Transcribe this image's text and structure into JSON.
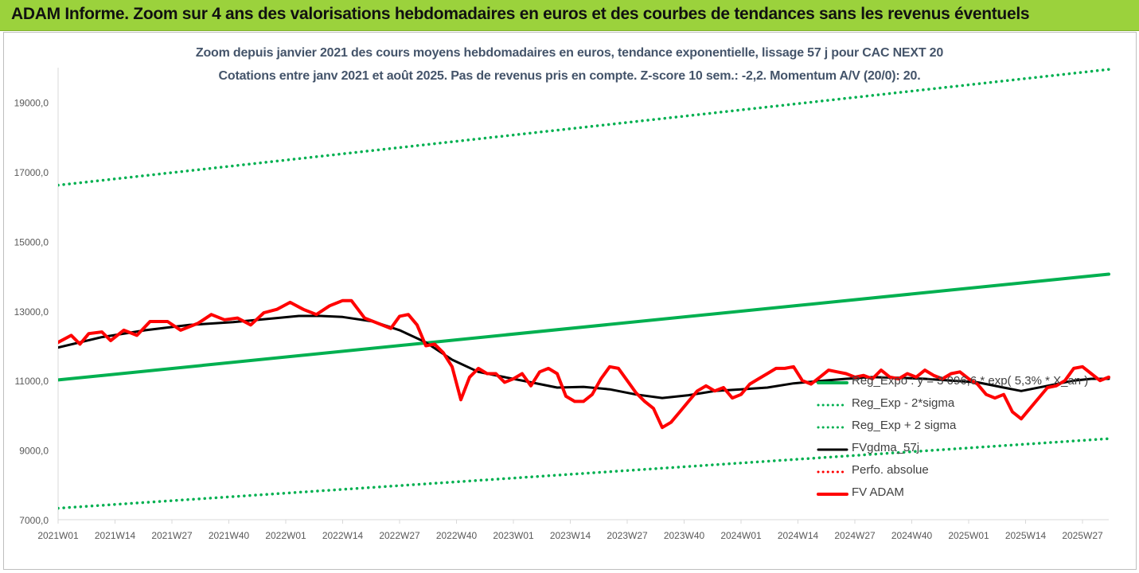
{
  "banner": {
    "title": "ADAM Informe. Zoom sur 4 ans des valorisations hebdomadaires en euros et des courbes de tendances sans les revenus éventuels"
  },
  "chart_data": {
    "type": "line",
    "title": "Zoom depuis janvier 2021 des cours moyens hebdomadaires en euros, tendance exponentielle, lissage 57 j pour CAC NEXT 20",
    "subtitle": "Cotations entre janv 2021 et août 2025.  Pas de revenus pris en compte. Z-score 10 sem.: -2,2. Momentum A/V (20/0): 20.",
    "xlabel": "",
    "ylabel": "",
    "ylim": [
      7000,
      20000
    ],
    "y_ticks": [
      7000,
      9000,
      11000,
      13000,
      15000,
      17000,
      19000
    ],
    "y_tick_labels": [
      "7000,0",
      "9000,0",
      "11000,0",
      "13000,0",
      "15000,0",
      "17000,0",
      "19000,0"
    ],
    "x_categories": [
      "2021W01",
      "2021W14",
      "2021W27",
      "2021W40",
      "2022W01",
      "2022W14",
      "2022W27",
      "2022W40",
      "2023W01",
      "2023W14",
      "2023W27",
      "2023W40",
      "2024W01",
      "2024W14",
      "2024W27",
      "2024W40",
      "2025W01",
      "2025W14",
      "2025W27"
    ],
    "x_count": 241,
    "grid": false,
    "legend_position": "bottom-right",
    "series": [
      {
        "name": "Reg_Expo : y = 3 096,6 * exp( 5,3% *  X_an )",
        "color": "#00b050",
        "style": "solid",
        "points": [
          [
            0,
            11020
          ],
          [
            240,
            14060
          ]
        ]
      },
      {
        "name": "Reg_Exp - 2*sigma",
        "color": "#00b050",
        "style": "dotted",
        "points": [
          [
            0,
            7330
          ],
          [
            240,
            9330
          ]
        ]
      },
      {
        "name": "Reg_Exp + 2 sigma",
        "color": "#00b050",
        "style": "dotted",
        "points": [
          [
            0,
            16620
          ],
          [
            240,
            19950
          ]
        ]
      },
      {
        "name": "FVgdma_57j",
        "color": "#000000",
        "style": "solid",
        "points": [
          [
            0,
            11950
          ],
          [
            10,
            12250
          ],
          [
            20,
            12450
          ],
          [
            30,
            12600
          ],
          [
            40,
            12680
          ],
          [
            50,
            12800
          ],
          [
            55,
            12860
          ],
          [
            60,
            12860
          ],
          [
            65,
            12830
          ],
          [
            72,
            12700
          ],
          [
            78,
            12450
          ],
          [
            84,
            12100
          ],
          [
            90,
            11600
          ],
          [
            96,
            11250
          ],
          [
            102,
            11100
          ],
          [
            108,
            10950
          ],
          [
            114,
            10800
          ],
          [
            120,
            10820
          ],
          [
            126,
            10750
          ],
          [
            132,
            10600
          ],
          [
            138,
            10500
          ],
          [
            144,
            10580
          ],
          [
            150,
            10700
          ],
          [
            156,
            10750
          ],
          [
            162,
            10800
          ],
          [
            168,
            10920
          ],
          [
            175,
            11000
          ],
          [
            180,
            11050
          ],
          [
            186,
            11100
          ],
          [
            192,
            11080
          ],
          [
            198,
            11050
          ],
          [
            204,
            11000
          ],
          [
            210,
            10950
          ],
          [
            216,
            10800
          ],
          [
            220,
            10700
          ],
          [
            226,
            10850
          ],
          [
            232,
            11000
          ],
          [
            236,
            11050
          ],
          [
            240,
            11050
          ]
        ]
      },
      {
        "name": "Perfo. absolue",
        "color": "#ff0000",
        "style": "dotted",
        "points": []
      },
      {
        "name": "FV ADAM",
        "color": "#ff0000",
        "style": "solid",
        "points": [
          [
            0,
            12100
          ],
          [
            3,
            12300
          ],
          [
            5,
            12050
          ],
          [
            7,
            12350
          ],
          [
            10,
            12400
          ],
          [
            12,
            12150
          ],
          [
            15,
            12450
          ],
          [
            18,
            12300
          ],
          [
            21,
            12700
          ],
          [
            25,
            12700
          ],
          [
            28,
            12450
          ],
          [
            32,
            12650
          ],
          [
            35,
            12900
          ],
          [
            38,
            12750
          ],
          [
            41,
            12800
          ],
          [
            44,
            12600
          ],
          [
            47,
            12950
          ],
          [
            50,
            13050
          ],
          [
            53,
            13250
          ],
          [
            56,
            13050
          ],
          [
            59,
            12900
          ],
          [
            62,
            13150
          ],
          [
            65,
            13300
          ],
          [
            67,
            13300
          ],
          [
            70,
            12800
          ],
          [
            73,
            12650
          ],
          [
            76,
            12500
          ],
          [
            78,
            12850
          ],
          [
            80,
            12900
          ],
          [
            82,
            12600
          ],
          [
            84,
            12000
          ],
          [
            86,
            12050
          ],
          [
            88,
            11800
          ],
          [
            90,
            11400
          ],
          [
            92,
            10450
          ],
          [
            94,
            11100
          ],
          [
            96,
            11350
          ],
          [
            98,
            11200
          ],
          [
            100,
            11200
          ],
          [
            102,
            10950
          ],
          [
            104,
            11050
          ],
          [
            106,
            11200
          ],
          [
            108,
            10850
          ],
          [
            110,
            11250
          ],
          [
            112,
            11350
          ],
          [
            114,
            11200
          ],
          [
            116,
            10550
          ],
          [
            118,
            10400
          ],
          [
            120,
            10400
          ],
          [
            122,
            10600
          ],
          [
            124,
            11050
          ],
          [
            126,
            11400
          ],
          [
            128,
            11350
          ],
          [
            130,
            11000
          ],
          [
            132,
            10650
          ],
          [
            134,
            10400
          ],
          [
            136,
            10200
          ],
          [
            138,
            9650
          ],
          [
            140,
            9800
          ],
          [
            142,
            10100
          ],
          [
            144,
            10400
          ],
          [
            146,
            10700
          ],
          [
            148,
            10850
          ],
          [
            150,
            10700
          ],
          [
            152,
            10800
          ],
          [
            154,
            10500
          ],
          [
            156,
            10600
          ],
          [
            158,
            10900
          ],
          [
            160,
            11050
          ],
          [
            162,
            11200
          ],
          [
            164,
            11350
          ],
          [
            166,
            11350
          ],
          [
            168,
            11400
          ],
          [
            170,
            11000
          ],
          [
            172,
            10900
          ],
          [
            174,
            11100
          ],
          [
            176,
            11300
          ],
          [
            178,
            11250
          ],
          [
            180,
            11200
          ],
          [
            182,
            11100
          ],
          [
            184,
            11150
          ],
          [
            186,
            11050
          ],
          [
            188,
            11300
          ],
          [
            190,
            11100
          ],
          [
            192,
            11050
          ],
          [
            194,
            11200
          ],
          [
            196,
            11100
          ],
          [
            198,
            11300
          ],
          [
            200,
            11150
          ],
          [
            202,
            11050
          ],
          [
            204,
            11200
          ],
          [
            206,
            11250
          ],
          [
            208,
            11050
          ],
          [
            210,
            10900
          ],
          [
            212,
            10600
          ],
          [
            214,
            10500
          ],
          [
            216,
            10600
          ],
          [
            218,
            10100
          ],
          [
            220,
            9900
          ],
          [
            222,
            10200
          ],
          [
            224,
            10500
          ],
          [
            226,
            10800
          ],
          [
            228,
            10850
          ],
          [
            230,
            11000
          ],
          [
            232,
            11350
          ],
          [
            234,
            11400
          ],
          [
            236,
            11200
          ],
          [
            238,
            11000
          ],
          [
            240,
            11100
          ]
        ]
      }
    ]
  }
}
